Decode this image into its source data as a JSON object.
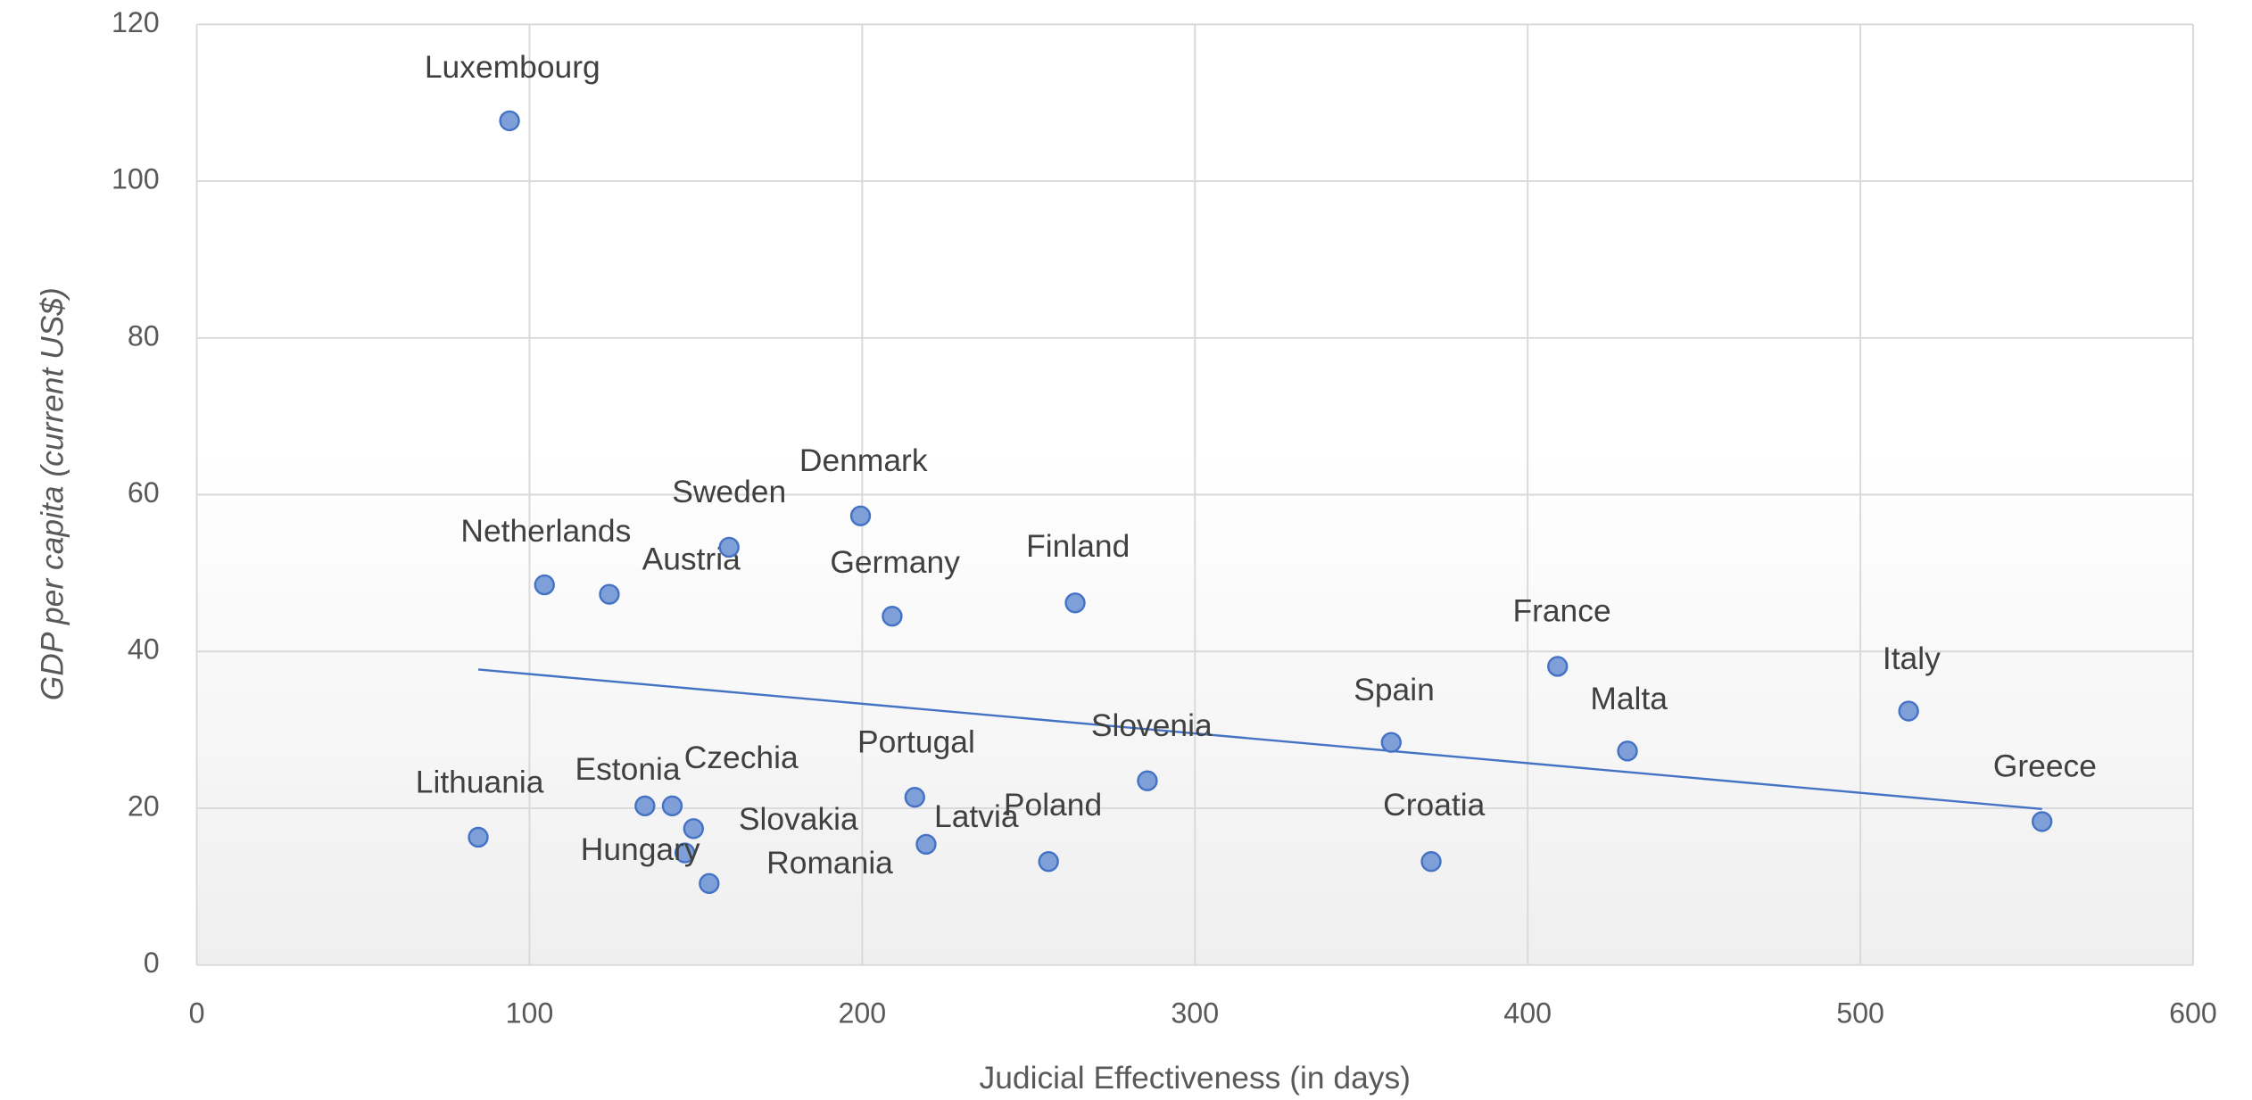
{
  "chart_data": {
    "type": "scatter",
    "xlabel": "Judicial Effectiveness (in days)",
    "ylabel": "GDP per capita (current US$)",
    "xlim": [
      0,
      600
    ],
    "xticks": [
      0,
      100,
      200,
      300,
      400,
      500,
      600
    ],
    "ylim": [
      0,
      120
    ],
    "yticks": [
      0,
      20,
      40,
      60,
      80,
      100,
      120
    ],
    "grid": true,
    "color": "#4472c4",
    "points": [
      {
        "label": "Luxembourg",
        "x": 94,
        "y": 107.7
      },
      {
        "label": "Netherlands",
        "x": 104.5,
        "y": 48.5
      },
      {
        "label": "Austria",
        "x": 124,
        "y": 47.3
      },
      {
        "label": "Sweden",
        "x": 160,
        "y": 53.3
      },
      {
        "label": "Denmark",
        "x": 199.5,
        "y": 57.3
      },
      {
        "label": "Germany",
        "x": 209,
        "y": 44.5
      },
      {
        "label": "Finland",
        "x": 264,
        "y": 46.2
      },
      {
        "label": "France",
        "x": 409,
        "y": 38.1
      },
      {
        "label": "Italy",
        "x": 514.5,
        "y": 32.4
      },
      {
        "label": "Spain",
        "x": 359,
        "y": 28.4
      },
      {
        "label": "Malta",
        "x": 430,
        "y": 27.3
      },
      {
        "label": "Greece",
        "x": 554.6,
        "y": 18.3
      },
      {
        "label": "Slovenia",
        "x": 285.7,
        "y": 23.5
      },
      {
        "label": "Croatia",
        "x": 371,
        "y": 13.2
      },
      {
        "label": "Lithuania",
        "x": 84.6,
        "y": 16.3
      },
      {
        "label": "Estonia",
        "x": 134.7,
        "y": 20.3
      },
      {
        "label": "Czechia",
        "x": 142.9,
        "y": 20.3
      },
      {
        "label": "Slovakia",
        "x": 149.3,
        "y": 17.4
      },
      {
        "label": "Hungary",
        "x": 146.7,
        "y": 14.3
      },
      {
        "label": "Romania",
        "x": 154,
        "y": 10.4
      },
      {
        "label": "Portugal",
        "x": 215.8,
        "y": 21.4
      },
      {
        "label": "Latvia",
        "x": 219.2,
        "y": 15.4
      },
      {
        "label": "Poland",
        "x": 256,
        "y": 13.2
      }
    ],
    "trendline": {
      "x": [
        84.6,
        554.6
      ],
      "y": [
        37.7,
        19.9
      ]
    }
  }
}
